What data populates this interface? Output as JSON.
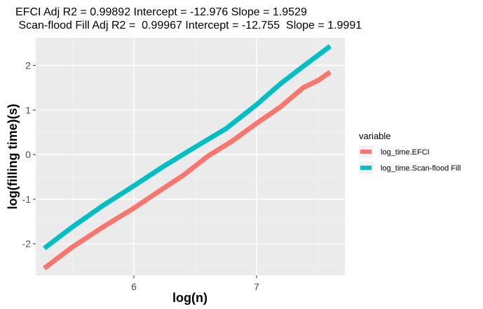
{
  "chart_data": {
    "type": "line",
    "title": "EFCI Adj R2 =  0.99892 Intercept = -12.976  Slope = 1.9529",
    "subtitle": " Scan-flood Fill Adj R2 =  0.99967 Intercept = -12.755  Slope = 1.9991",
    "xlabel": "log(n)",
    "ylabel": "log(filling time)(s)",
    "xlim": [
      5.2,
      7.72
    ],
    "ylim": [
      -2.71,
      2.62
    ],
    "x_ticks": [
      6,
      7
    ],
    "x_tick_labels": [
      "6",
      "7"
    ],
    "x_minor_ticks": [
      5.5,
      6.5,
      7.5
    ],
    "y_ticks": [
      -2,
      -1,
      0,
      1,
      2
    ],
    "y_tick_labels": [
      "-2",
      "-1",
      "0",
      "1",
      "2"
    ],
    "y_minor_ticks": [
      -2.5,
      -1.5,
      -0.5,
      0.5,
      1.5,
      2.5
    ],
    "grid": true,
    "legend_title": "variable",
    "legend_position": "right",
    "series": [
      {
        "name": "log_time.EFCI",
        "color": "#F8766D",
        "points": [
          [
            5.27,
            -2.55
          ],
          [
            5.5,
            -2.07
          ],
          [
            5.75,
            -1.62
          ],
          [
            6.0,
            -1.2
          ],
          [
            6.2,
            -0.83
          ],
          [
            6.4,
            -0.47
          ],
          [
            6.6,
            -0.04
          ],
          [
            6.8,
            0.3
          ],
          [
            7.0,
            0.7
          ],
          [
            7.2,
            1.08
          ],
          [
            7.38,
            1.5
          ],
          [
            7.5,
            1.66
          ],
          [
            7.6,
            1.85
          ]
        ]
      },
      {
        "name": "log_time.Scan-flood Fill",
        "color": "#00BFC4",
        "points": [
          [
            5.27,
            -2.1
          ],
          [
            5.5,
            -1.62
          ],
          [
            5.75,
            -1.14
          ],
          [
            6.0,
            -0.7
          ],
          [
            6.25,
            -0.25
          ],
          [
            6.5,
            0.17
          ],
          [
            6.75,
            0.58
          ],
          [
            7.0,
            1.12
          ],
          [
            7.2,
            1.6
          ],
          [
            7.4,
            2.02
          ],
          [
            7.6,
            2.43
          ]
        ]
      }
    ]
  }
}
